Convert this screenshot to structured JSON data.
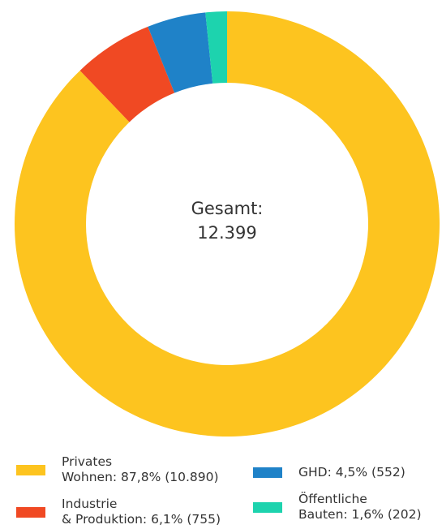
{
  "chart_data": {
    "type": "pie",
    "variant": "donut",
    "center_text": [
      "Gesamt:",
      "12.399"
    ],
    "total": 12399,
    "slices": [
      {
        "key": "privat",
        "label_lines": [
          "Privates",
          "Wohnen: 87,8% (10.890)"
        ],
        "percent": 87.8,
        "value": 10890,
        "color": "#FDC41F"
      },
      {
        "key": "industrie",
        "label_lines": [
          "Industrie",
          "& Produktion: 6,1% (755)"
        ],
        "percent": 6.1,
        "value": 755,
        "color": "#F04923"
      },
      {
        "key": "ghd",
        "label_lines": [
          "GHD: 4,5% (552)"
        ],
        "percent": 4.5,
        "value": 552,
        "color": "#1F82C8"
      },
      {
        "key": "oeffentlich",
        "label_lines": [
          "Öffentliche",
          "Bauten: 1,6% (202)"
        ],
        "percent": 1.6,
        "value": 202,
        "color": "#1DD3AE"
      }
    ],
    "start_angle": "top",
    "direction": "clockwise",
    "legend_position": "bottom"
  }
}
